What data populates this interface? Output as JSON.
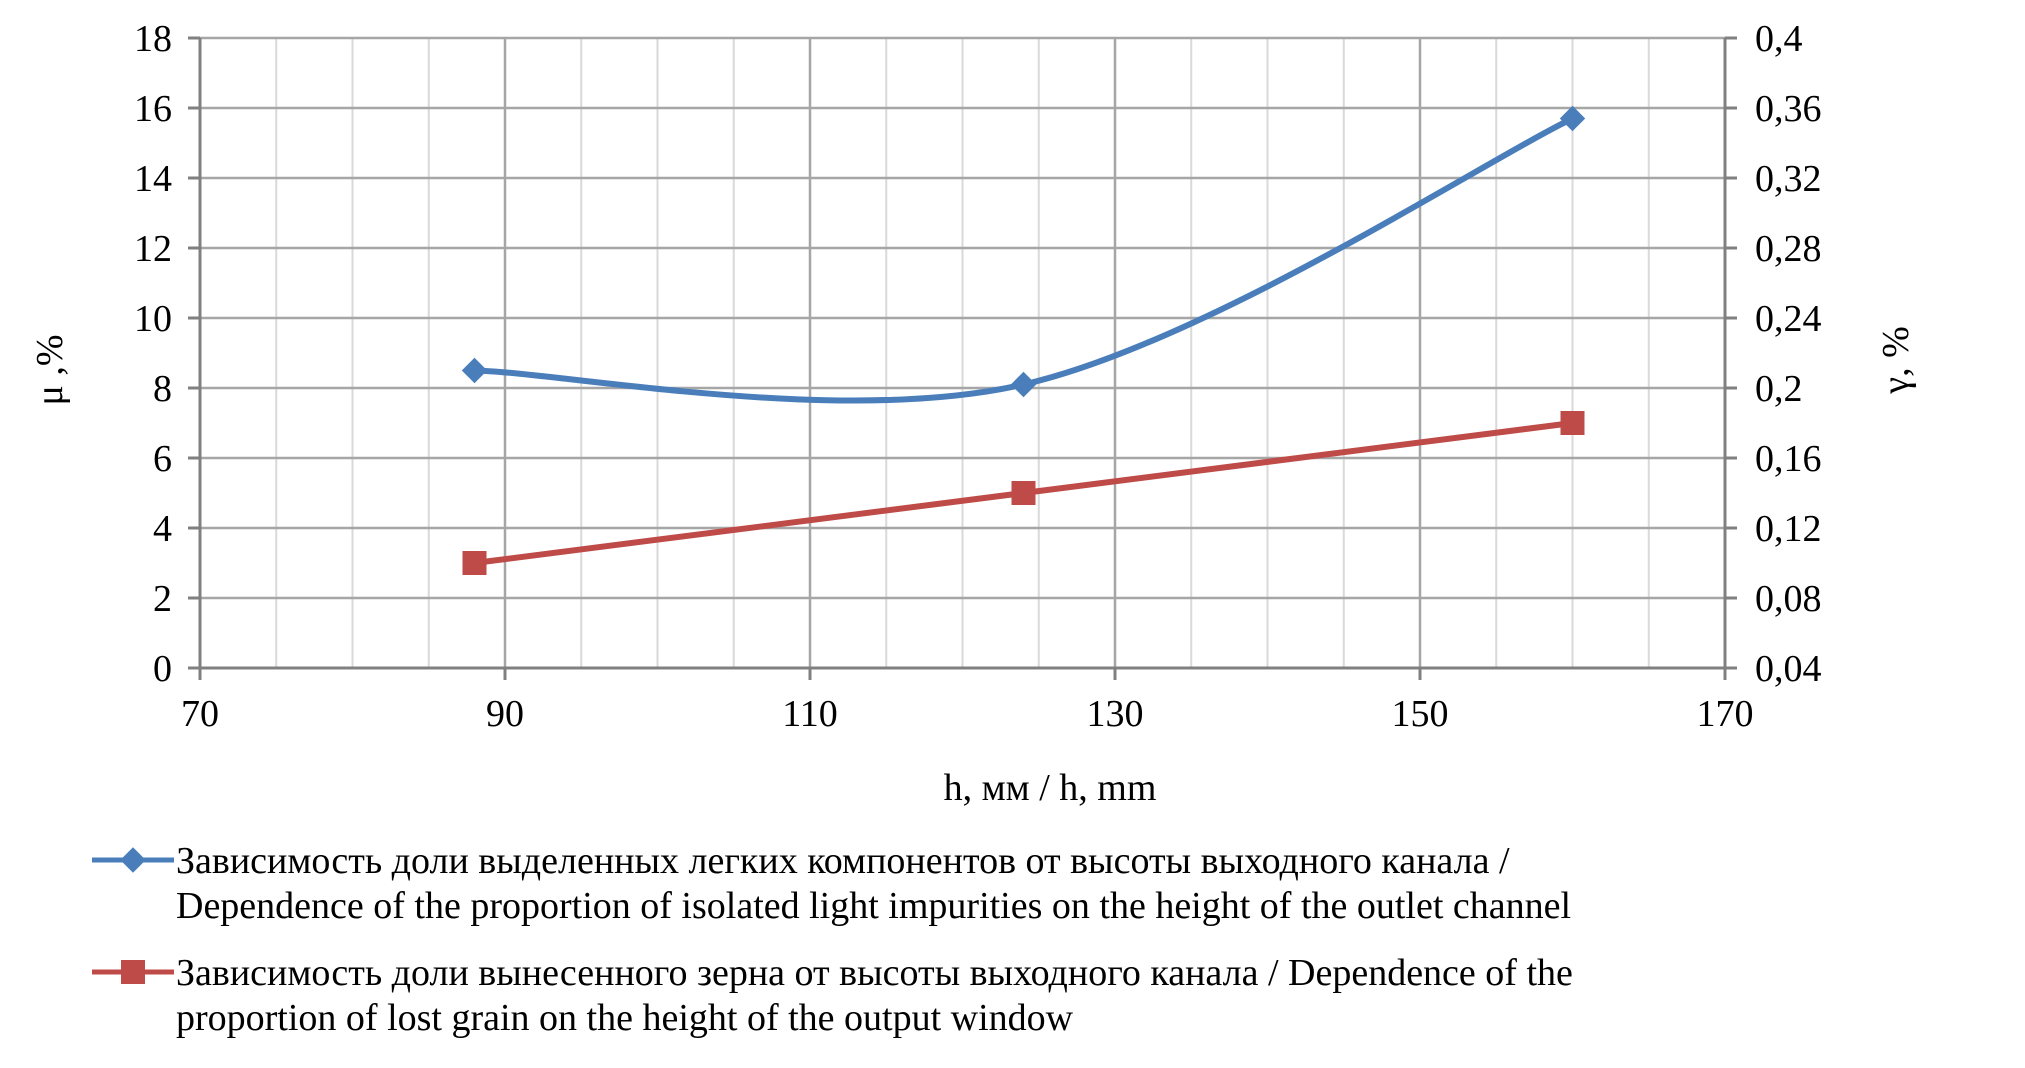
{
  "chart_data": {
    "type": "line",
    "xlabel": "h, мм / h, mm",
    "ylabel_left": "μ ,%",
    "ylabel_right": "γ, %",
    "xlim": [
      70,
      170
    ],
    "xticks": [
      70,
      90,
      110,
      130,
      150,
      170
    ],
    "x_tick_labels": [
      "70",
      "90",
      "110",
      "130",
      "150",
      "170"
    ],
    "ylim_left": [
      0,
      18
    ],
    "yticks_left": [
      0,
      2,
      4,
      6,
      8,
      10,
      12,
      14,
      16,
      18
    ],
    "y_tick_labels_left": [
      "0",
      "2",
      "4",
      "6",
      "8",
      "10",
      "12",
      "14",
      "16",
      "18"
    ],
    "ylim_right": [
      0.04,
      0.4
    ],
    "yticks_right": [
      0.04,
      0.08,
      0.12,
      0.16,
      0.2,
      0.24,
      0.28,
      0.32,
      0.36,
      0.4
    ],
    "y_tick_labels_right": [
      "0,04",
      "0,08",
      "0,12",
      "0,16",
      "0,2",
      "0,24",
      "0,28",
      "0,32",
      "0,36",
      "0,4"
    ],
    "grid": true,
    "legend_position": "bottom",
    "series": [
      {
        "name": "Зависимость доли выделенных легких компонентов от высоты выходного канала / Dependence of the proportion of isolated light impurities on the height of the outlet channel",
        "legend_lines": [
          "Зависимость доли выделенных легких компонентов от высоты выходного канала /",
          "Dependence of the proportion of isolated light impurities on the height of the outlet channel"
        ],
        "axis": "left",
        "color": "#4a7ebb",
        "marker": "diamond",
        "smooth": true,
        "x": [
          88,
          124,
          160
        ],
        "y": [
          8.5,
          8.1,
          15.7
        ]
      },
      {
        "name": "Зависимость доли вынесенного зерна от высоты выходного канала / Dependence of the proportion of lost grain on the height of the output window",
        "legend_lines": [
          "Зависимость доли вынесенного зерна от высоты выходного канала / Dependence of the",
          "proportion of lost grain on the height of the output window"
        ],
        "axis": "left",
        "color": "#be4b48",
        "marker": "square",
        "smooth": false,
        "x": [
          88,
          124,
          160
        ],
        "y": [
          3.0,
          5.0,
          7.0
        ]
      }
    ]
  }
}
